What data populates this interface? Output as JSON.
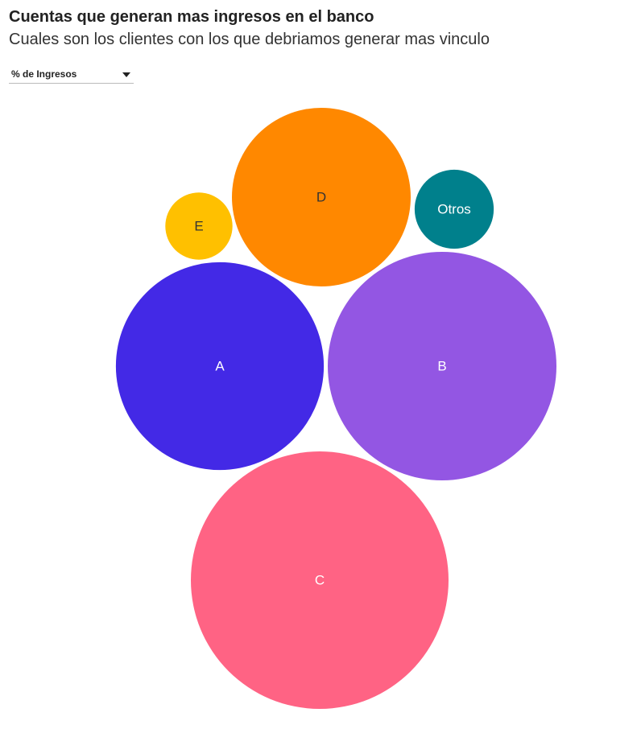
{
  "header": {
    "title": "Cuentas que generan mas ingresos en el banco",
    "subtitle": "Cuales son los clientes con los que debriamos generar mas vinculo"
  },
  "controls": {
    "metric_select": {
      "selected": "% de Ingresos",
      "icon": "caret-down-icon"
    }
  },
  "chart_data": {
    "type": "bubble",
    "measure": "% de Ingresos",
    "bubbles": [
      {
        "label": "C",
        "value": 100,
        "color": "#ff6384",
        "text_color": "#ffffff"
      },
      {
        "label": "B",
        "value": 78.8,
        "color": "#9356e3",
        "text_color": "#ffffff"
      },
      {
        "label": "A",
        "value": 65.1,
        "color": "#4329e6",
        "text_color": "#ffffff"
      },
      {
        "label": "D",
        "value": 48.1,
        "color": "#ff8800",
        "text_color": "#333333"
      },
      {
        "label": "Otros",
        "value": 9.4,
        "color": "#00808c",
        "text_color": "#ffffff"
      },
      {
        "label": "E",
        "value": 6.8,
        "color": "#ffc000",
        "text_color": "#333333"
      }
    ]
  }
}
